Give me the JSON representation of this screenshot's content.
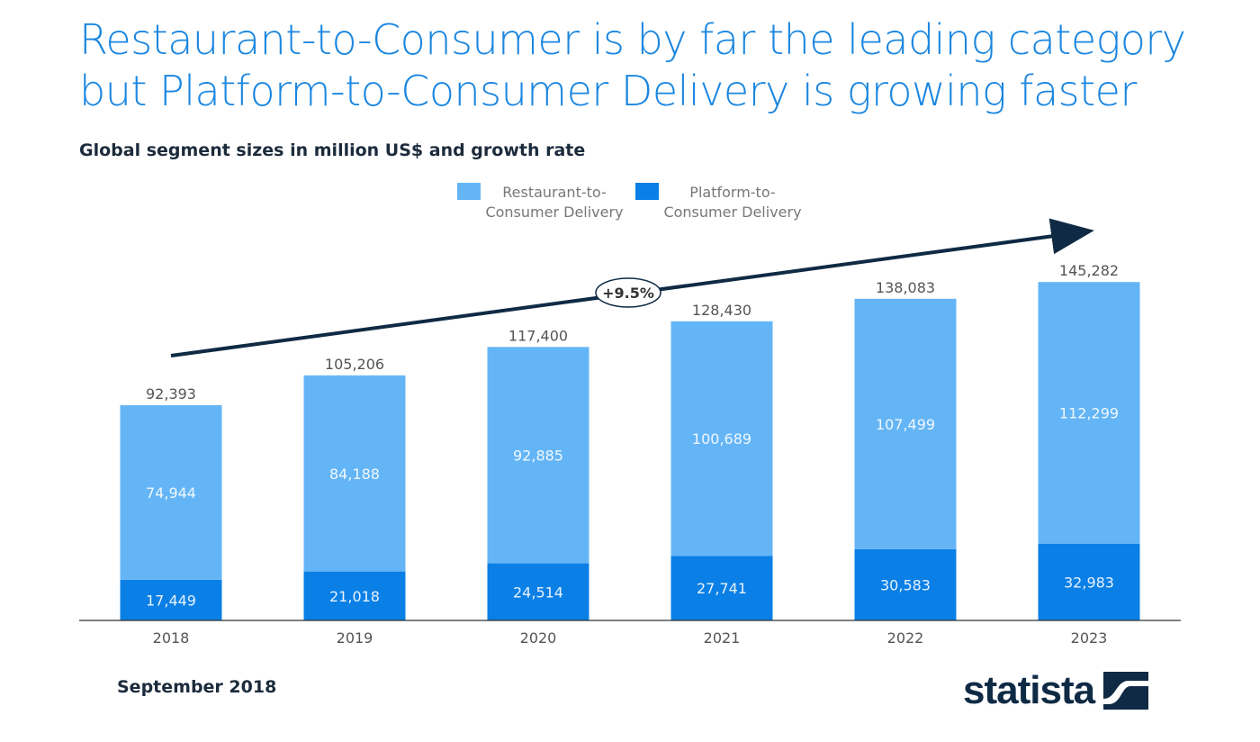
{
  "title_line1": "Restaurant-to-Consumer is by far the leading category",
  "title_line2": "but Platform-to-Consumer Delivery is growing faster",
  "subtitle": "Global segment sizes in million US$ and growth rate",
  "footer_date": "September 2018",
  "logo_text": "statista",
  "chart_data": {
    "type": "bar",
    "stacked": true,
    "title": "Global segment sizes in million US$ and growth rate",
    "categories": [
      "2018",
      "2019",
      "2020",
      "2021",
      "2022",
      "2023"
    ],
    "series": [
      {
        "name": "Platform-to-Consumer Delivery",
        "legend_lines": [
          "Platform-to-",
          "Consumer Delivery"
        ],
        "color": "#0a7fe6",
        "values": [
          17449,
          21018,
          24514,
          27741,
          30583,
          32983
        ],
        "labels": [
          "17,449",
          "21,018",
          "24,514",
          "27,741",
          "30,583",
          "32,983"
        ]
      },
      {
        "name": "Restaurant-to-Consumer Delivery",
        "legend_lines": [
          "Restaurant-to-",
          "Consumer Delivery"
        ],
        "color": "#64b5f6",
        "values": [
          74944,
          84188,
          92885,
          100689,
          107499,
          112299
        ],
        "labels": [
          "74,944",
          "84,188",
          "92,885",
          "100,689",
          "107,499",
          "112,299"
        ]
      }
    ],
    "totals": [
      92393,
      105206,
      117400,
      128430,
      138083,
      145282
    ],
    "total_labels": [
      "92,393",
      "105,206",
      "117,400",
      "128,430",
      "138,083",
      "145,282"
    ],
    "annotation": "+9.5%",
    "ylim": [
      0,
      150000
    ],
    "grid": false,
    "legend_position": "top-center",
    "xlabel": "",
    "ylabel": ""
  }
}
